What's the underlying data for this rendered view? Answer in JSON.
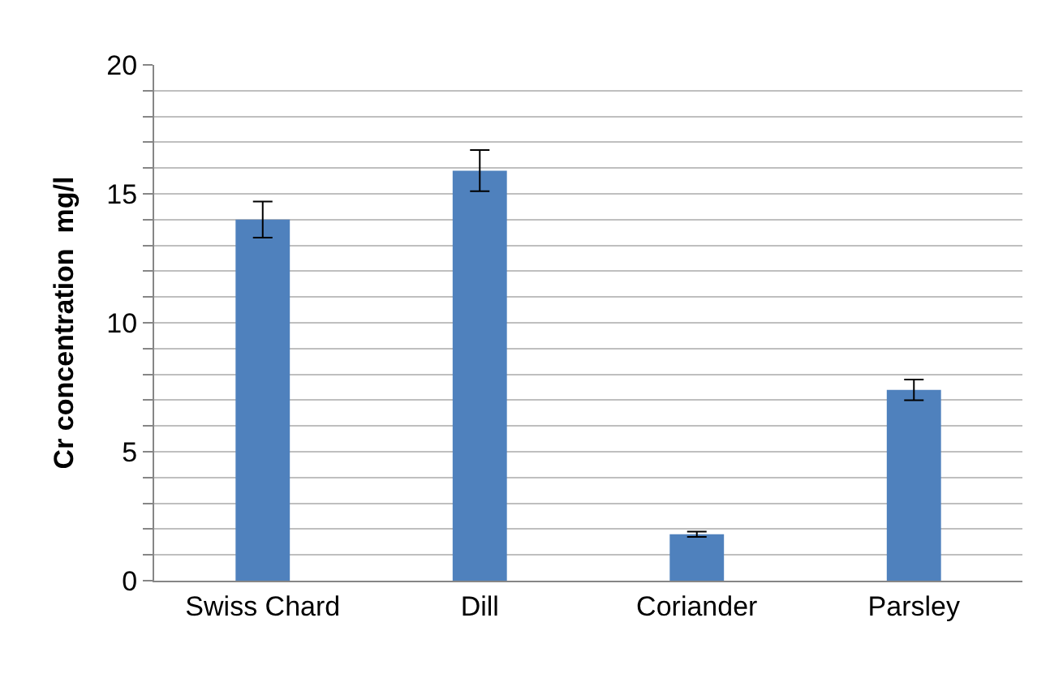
{
  "chart_data": {
    "type": "bar",
    "ylabel": "Cr concentration  mg/l",
    "categories": [
      "Swiss Chard",
      "Dill",
      "Coriander",
      "Parsley"
    ],
    "values": [
      14.0,
      15.9,
      1.8,
      7.4
    ],
    "errors": [
      0.7,
      0.8,
      0.1,
      0.4
    ],
    "color": "#4f81bd",
    "ylim": [
      0,
      20
    ],
    "yticks": [
      0,
      {
        "value": 1,
        "label": null
      },
      {
        "value": 2,
        "label": null
      },
      {
        "value": 3,
        "label": null
      },
      {
        "value": 4,
        "label": null
      },
      5,
      {
        "value": 6,
        "label": null
      },
      {
        "value": 7,
        "label": null
      },
      {
        "value": 8,
        "label": null
      },
      {
        "value": 9,
        "label": null
      },
      10,
      {
        "value": 11,
        "label": null
      },
      {
        "value": 12,
        "label": null
      },
      {
        "value": 13,
        "label": null
      },
      {
        "value": 14,
        "label": null
      },
      15,
      {
        "value": 16,
        "label": null
      },
      {
        "value": 17,
        "label": null
      },
      {
        "value": 18,
        "label": null
      },
      {
        "value": 19,
        "label": null
      },
      20
    ],
    "grid": "y"
  }
}
